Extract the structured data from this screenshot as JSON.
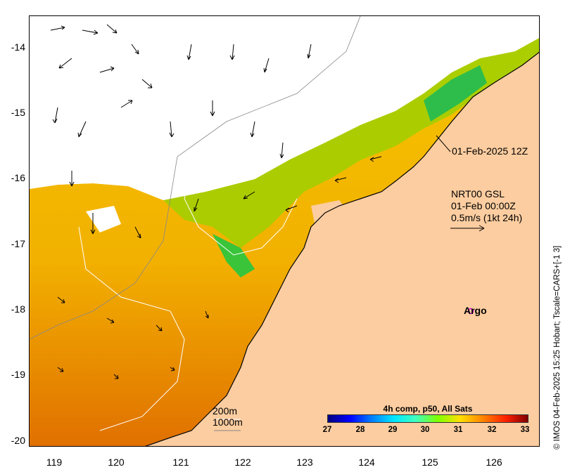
{
  "map": {
    "y_ticks": [
      "-14",
      "-15",
      "-16",
      "-17",
      "-18",
      "-19",
      "-20"
    ],
    "x_ticks": [
      "119",
      "120",
      "121",
      "122",
      "123",
      "124",
      "125",
      "126"
    ],
    "date_label": "01-Feb-2025 12Z",
    "current_info": [
      "NRT00 GSL",
      "01-Feb 00:00Z",
      "0.5m/s (1kt 24h)"
    ],
    "argo_label": "Argo",
    "depth_legend": [
      "200m",
      "1000m"
    ],
    "credit": "© IMOS 04-Feb-2025 15:25 Hobart; Tscale=CARS+[-1 3]",
    "colorbar": {
      "title": "4h comp, p50, All Sats",
      "ticks": [
        "27",
        "28",
        "29",
        "30",
        "31",
        "32",
        "33"
      ]
    },
    "colors": {
      "land": "#fccda0",
      "argo": "#e000e0"
    }
  }
}
